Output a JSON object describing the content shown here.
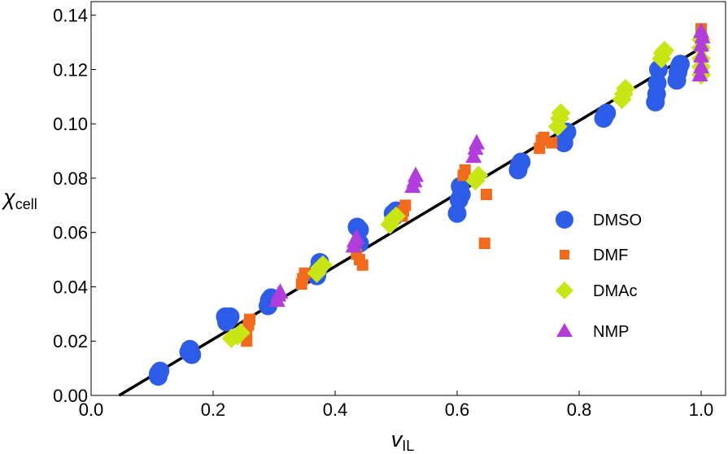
{
  "chart_data": {
    "type": "scatter",
    "title": "",
    "xlabel": "v",
    "xlabel_sub": "IL",
    "ylabel": "χ",
    "ylabel_sub": "cell",
    "xlim": [
      0.0,
      1.04
    ],
    "ylim": [
      0.0,
      0.145
    ],
    "x_ticks": [
      "0.0",
      "0.2",
      "0.4",
      "0.6",
      "0.8",
      "1.0"
    ],
    "y_ticks": [
      "0.00",
      "0.02",
      "0.04",
      "0.06",
      "0.08",
      "0.10",
      "0.12",
      "0.14"
    ],
    "grid": false,
    "legend_position": "right",
    "fit_line": {
      "x1": 0.046,
      "y1": 0.0,
      "x2": 1.0,
      "y2": 0.128,
      "color": "#000000"
    },
    "series": [
      {
        "name": "DMSO",
        "marker": "circle",
        "color": "#2d5ce8",
        "points": [
          [
            0.11,
            0.008
          ],
          [
            0.11,
            0.007
          ],
          [
            0.113,
            0.009
          ],
          [
            0.16,
            0.016
          ],
          [
            0.162,
            0.017
          ],
          [
            0.165,
            0.015
          ],
          [
            0.22,
            0.029
          ],
          [
            0.222,
            0.027
          ],
          [
            0.225,
            0.028
          ],
          [
            0.228,
            0.029
          ],
          [
            0.29,
            0.033
          ],
          [
            0.292,
            0.035
          ],
          [
            0.295,
            0.036
          ],
          [
            0.37,
            0.044
          ],
          [
            0.372,
            0.046
          ],
          [
            0.375,
            0.049
          ],
          [
            0.436,
            0.062
          ],
          [
            0.44,
            0.061
          ],
          [
            0.44,
            0.056
          ],
          [
            0.495,
            0.067
          ],
          [
            0.497,
            0.066
          ],
          [
            0.5,
            0.068
          ],
          [
            0.6,
            0.067
          ],
          [
            0.603,
            0.072
          ],
          [
            0.605,
            0.077
          ],
          [
            0.607,
            0.074
          ],
          [
            0.7,
            0.083
          ],
          [
            0.702,
            0.085
          ],
          [
            0.705,
            0.086
          ],
          [
            0.775,
            0.093
          ],
          [
            0.777,
            0.096
          ],
          [
            0.78,
            0.097
          ],
          [
            0.84,
            0.102
          ],
          [
            0.842,
            0.103
          ],
          [
            0.845,
            0.104
          ],
          [
            0.925,
            0.108
          ],
          [
            0.927,
            0.111
          ],
          [
            0.928,
            0.115
          ],
          [
            0.93,
            0.12
          ],
          [
            0.96,
            0.116
          ],
          [
            0.962,
            0.119
          ],
          [
            0.964,
            0.121
          ],
          [
            0.966,
            0.122
          ]
        ]
      },
      {
        "name": "DMF",
        "marker": "square",
        "color": "#f26b1d",
        "points": [
          [
            0.255,
            0.02
          ],
          [
            0.255,
            0.023
          ],
          [
            0.258,
            0.026
          ],
          [
            0.26,
            0.028
          ],
          [
            0.345,
            0.041
          ],
          [
            0.347,
            0.043
          ],
          [
            0.35,
            0.045
          ],
          [
            0.435,
            0.052
          ],
          [
            0.44,
            0.05
          ],
          [
            0.445,
            0.048
          ],
          [
            0.51,
            0.066
          ],
          [
            0.512,
            0.068
          ],
          [
            0.515,
            0.07
          ],
          [
            0.61,
            0.081
          ],
          [
            0.613,
            0.083
          ],
          [
            0.645,
            0.056
          ],
          [
            0.648,
            0.074
          ],
          [
            0.735,
            0.091
          ],
          [
            0.738,
            0.094
          ],
          [
            0.742,
            0.095
          ],
          [
            0.755,
            0.093
          ],
          [
            1.0,
            0.13
          ],
          [
            1.0,
            0.133
          ],
          [
            1.0,
            0.135
          ]
        ]
      },
      {
        "name": "DMAc",
        "marker": "diamond",
        "color": "#c8e614",
        "points": [
          [
            0.23,
            0.021
          ],
          [
            0.24,
            0.022
          ],
          [
            0.245,
            0.023
          ],
          [
            0.37,
            0.045
          ],
          [
            0.375,
            0.047
          ],
          [
            0.38,
            0.048
          ],
          [
            0.49,
            0.063
          ],
          [
            0.495,
            0.065
          ],
          [
            0.5,
            0.066
          ],
          [
            0.63,
            0.079
          ],
          [
            0.635,
            0.081
          ],
          [
            0.765,
            0.099
          ],
          [
            0.768,
            0.102
          ],
          [
            0.77,
            0.104
          ],
          [
            0.87,
            0.109
          ],
          [
            0.873,
            0.111
          ],
          [
            0.876,
            0.113
          ],
          [
            0.935,
            0.124
          ],
          [
            0.937,
            0.126
          ],
          [
            0.94,
            0.127
          ],
          [
            1.0,
            0.118
          ],
          [
            1.0,
            0.121
          ],
          [
            1.0,
            0.124
          ],
          [
            1.0,
            0.128
          ],
          [
            1.0,
            0.131
          ]
        ]
      },
      {
        "name": "NMP",
        "marker": "triangle",
        "color": "#b23ddc",
        "points": [
          [
            0.305,
            0.035
          ],
          [
            0.307,
            0.037
          ],
          [
            0.31,
            0.038
          ],
          [
            0.43,
            0.055
          ],
          [
            0.432,
            0.057
          ],
          [
            0.435,
            0.058
          ],
          [
            0.527,
            0.077
          ],
          [
            0.53,
            0.079
          ],
          [
            0.532,
            0.081
          ],
          [
            0.627,
            0.088
          ],
          [
            0.63,
            0.091
          ],
          [
            0.632,
            0.093
          ],
          [
            0.998,
            0.118
          ],
          [
            1.0,
            0.121
          ],
          [
            1.0,
            0.125
          ],
          [
            1.0,
            0.129
          ],
          [
            1.002,
            0.132
          ],
          [
            1.0,
            0.134
          ]
        ]
      }
    ]
  }
}
